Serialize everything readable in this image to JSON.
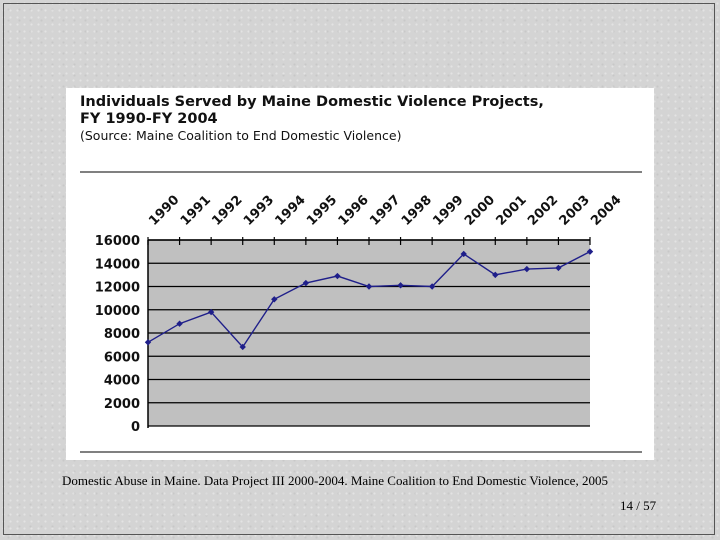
{
  "slide": {
    "caption": "Domestic Abuse in Maine. Data Project III 2000-2004. Maine Coalition to End Domestic Violence, 2005",
    "page_current": "14",
    "page_sep": "/",
    "page_total": "57"
  },
  "colors": {
    "plot_bg": "#c0c0c0",
    "line": "#1f1f8a",
    "grid": "#000000"
  },
  "chart_data": {
    "type": "line",
    "title_line1": "Individuals Served by Maine Domestic Violence Projects,",
    "title_line2": "FY 1990-FY 2004",
    "source": "(Source: Maine Coalition to End Domestic Violence)",
    "categories": [
      "1990",
      "1991",
      "1992",
      "1993",
      "1994",
      "1995",
      "1996",
      "1997",
      "1998",
      "1999",
      "2000",
      "2001",
      "2002",
      "2003",
      "2004"
    ],
    "series": [
      {
        "name": "Individuals Served",
        "values": [
          7200,
          8800,
          9800,
          6800,
          10900,
          12300,
          12900,
          12000,
          12100,
          12000,
          14800,
          13000,
          13500,
          13600,
          15000
        ]
      }
    ],
    "yticks": [
      0,
      2000,
      4000,
      6000,
      8000,
      10000,
      12000,
      14000,
      16000
    ],
    "ylim": [
      0,
      16000
    ],
    "grid": true,
    "xaxis_position": "top"
  }
}
